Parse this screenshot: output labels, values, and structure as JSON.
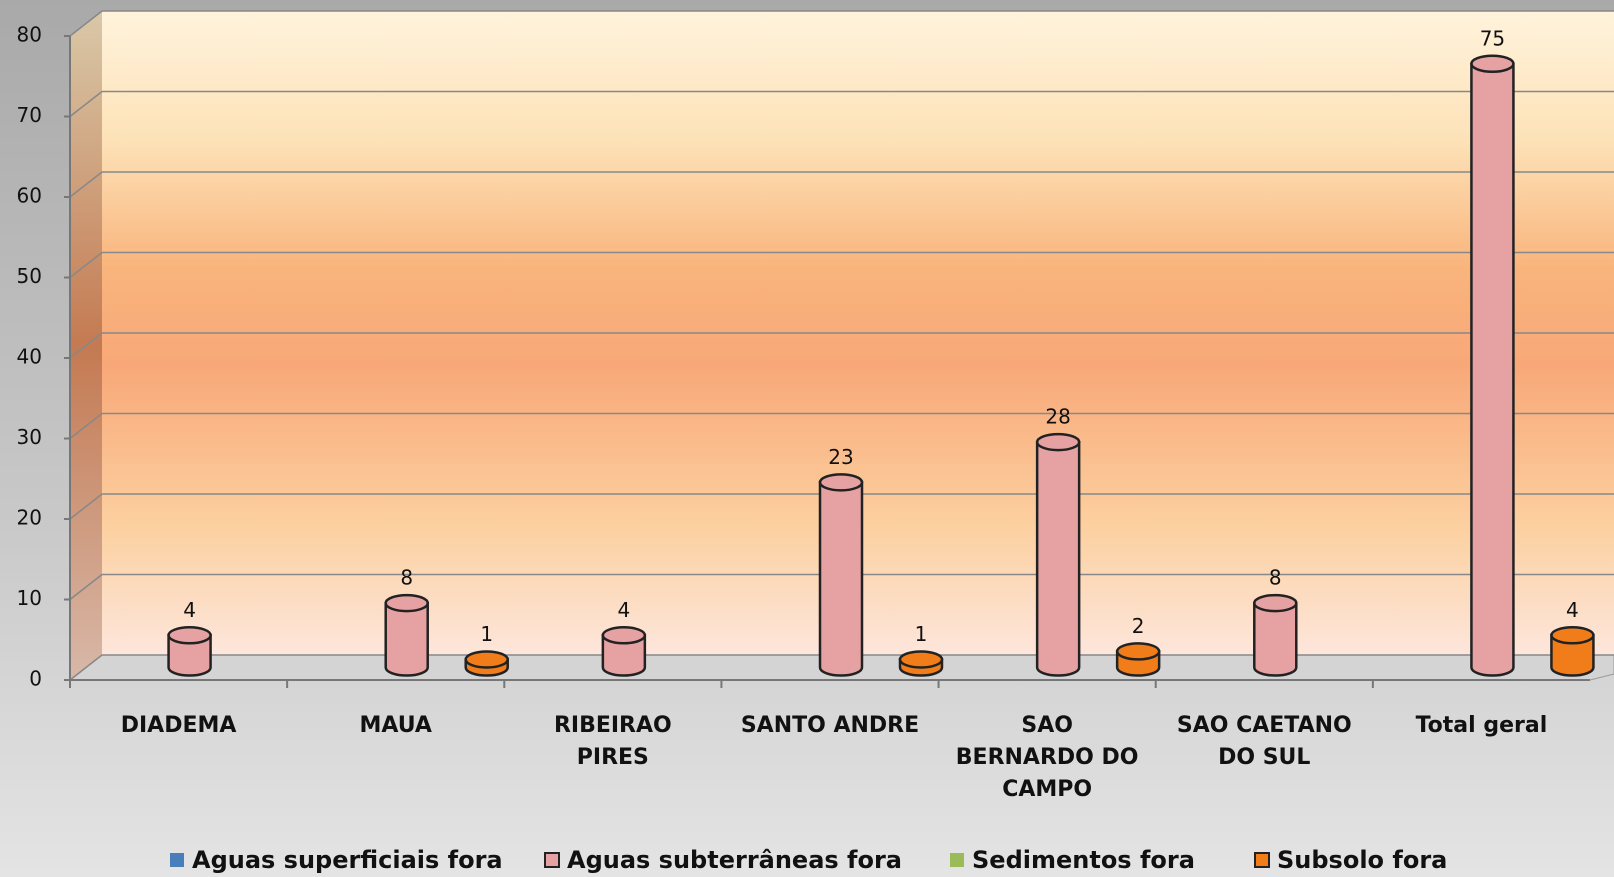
{
  "chart_data": {
    "type": "bar",
    "categories": [
      "DIADEMA",
      "MAUA",
      "RIBEIRAO PIRES",
      "SANTO ANDRE",
      "SAO BERNARDO DO CAMPO",
      "SAO CAETANO DO SUL",
      "Total geral"
    ],
    "series": [
      {
        "name": "Aguas superficiais fora",
        "color": "#4a7ebb",
        "values": [
          null,
          null,
          null,
          null,
          null,
          null,
          null
        ]
      },
      {
        "name": "Aguas subterrâneas fora",
        "color": "#e6a2a2",
        "values": [
          4,
          8,
          4,
          23,
          28,
          8,
          75
        ]
      },
      {
        "name": "Sedimentos fora",
        "color": "#9bbb59",
        "values": [
          null,
          null,
          null,
          null,
          null,
          null,
          null
        ]
      },
      {
        "name": "Subsolo fora",
        "color": "#f07c1a",
        "values": [
          null,
          1,
          null,
          1,
          2,
          null,
          4
        ]
      }
    ],
    "ylim": [
      0,
      80
    ],
    "yticks": [
      0,
      10,
      20,
      30,
      40,
      50,
      60,
      70,
      80
    ],
    "grid": true,
    "legend": "bottom"
  }
}
